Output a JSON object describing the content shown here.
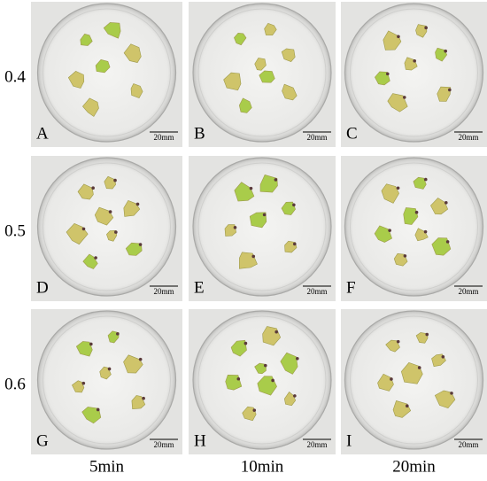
{
  "row_labels": [
    "0.4",
    "0.5",
    "0.6"
  ],
  "column_labels": [
    "5min",
    "10min",
    "20min"
  ],
  "panels": [
    {
      "letter": "A",
      "scale": "20mm"
    },
    {
      "letter": "B",
      "scale": "20mm"
    },
    {
      "letter": "C",
      "scale": "20mm"
    },
    {
      "letter": "D",
      "scale": "20mm"
    },
    {
      "letter": "E",
      "scale": "20mm"
    },
    {
      "letter": "F",
      "scale": "20mm"
    },
    {
      "letter": "G",
      "scale": "20mm"
    },
    {
      "letter": "H",
      "scale": "20mm"
    },
    {
      "letter": "I",
      "scale": "20mm"
    }
  ]
}
